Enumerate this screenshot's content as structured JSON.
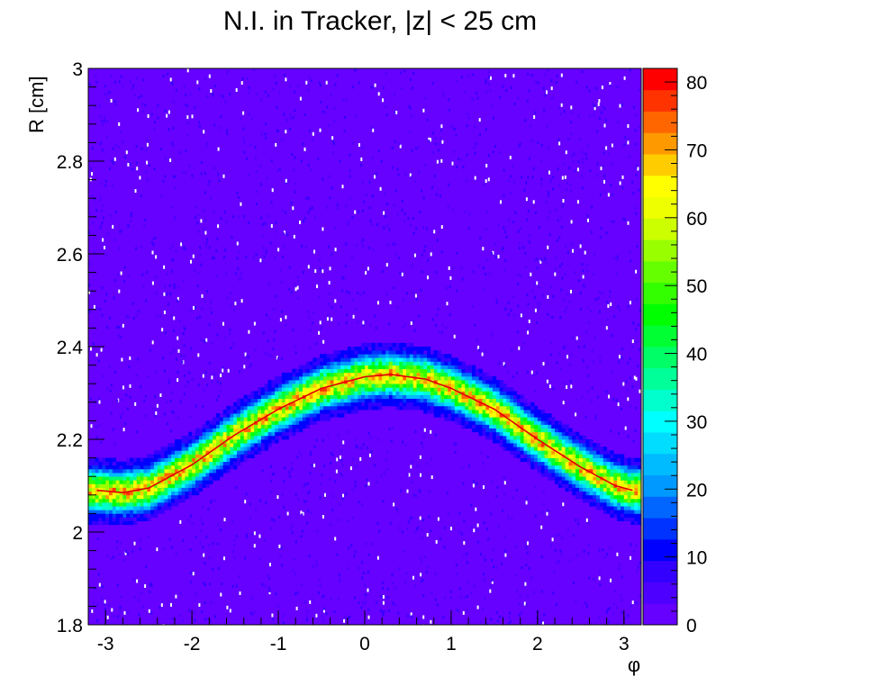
{
  "chart_data": {
    "type": "heatmap",
    "title": "N.I. in Tracker, |z| < 25 cm",
    "xlabel": "φ",
    "ylabel": "R [cm]",
    "xlim": [
      -3.2,
      3.2
    ],
    "ylim": [
      1.8,
      3.0
    ],
    "x_ticks": [
      -3,
      -2,
      -1,
      0,
      1,
      2,
      3
    ],
    "x_tick_labels": [
      "-3",
      "-2",
      "-1",
      "0",
      "1",
      "2",
      "3"
    ],
    "y_ticks": [
      1.8,
      2.0,
      2.2,
      2.4,
      2.6,
      2.8,
      3.0
    ],
    "y_tick_labels": [
      "1.8",
      "2",
      "2.2",
      "2.4",
      "2.6",
      "2.8",
      "3"
    ],
    "grid": false,
    "colorbar": {
      "range": [
        0,
        82
      ],
      "tick_values": [
        0,
        10,
        20,
        30,
        40,
        50,
        60,
        70,
        80
      ],
      "tick_labels": [
        "0",
        "10",
        "20",
        "30",
        "40",
        "50",
        "60",
        "70",
        "80"
      ],
      "palette": [
        "#6600ff",
        "#4d00ff",
        "#3300ff",
        "#0000ff",
        "#0033ff",
        "#0066ff",
        "#0099ff",
        "#00bbff",
        "#00ddff",
        "#00ffff",
        "#00ffcc",
        "#00ff99",
        "#00ff66",
        "#00ff33",
        "#00ff00",
        "#33ff00",
        "#66ff00",
        "#99ff00",
        "#ccff00",
        "#eeff00",
        "#ffff00",
        "#ffcc00",
        "#ff9900",
        "#ff6600",
        "#ff3300",
        "#ff0000"
      ]
    },
    "band_fit": {
      "description_of_shape": "sinusoidal band of high density",
      "center_R_at_phi": [
        {
          "phi": -3.1,
          "R": 2.09
        },
        {
          "phi": -2.8,
          "R": 2.085
        },
        {
          "phi": -2.5,
          "R": 2.095
        },
        {
          "phi": -2.0,
          "R": 2.145
        },
        {
          "phi": -1.5,
          "R": 2.21
        },
        {
          "phi": -1.0,
          "R": 2.265
        },
        {
          "phi": -0.5,
          "R": 2.31
        },
        {
          "phi": 0.0,
          "R": 2.335
        },
        {
          "phi": 0.3,
          "R": 2.34
        },
        {
          "phi": 0.7,
          "R": 2.33
        },
        {
          "phi": 1.0,
          "R": 2.31
        },
        {
          "phi": 1.5,
          "R": 2.265
        },
        {
          "phi": 2.0,
          "R": 2.2
        },
        {
          "phi": 2.5,
          "R": 2.14
        },
        {
          "phi": 2.9,
          "R": 2.1
        },
        {
          "phi": 3.1,
          "R": 2.09
        }
      ],
      "fit_color": "#e00000",
      "peak_density": 65,
      "background_density": 2
    }
  }
}
